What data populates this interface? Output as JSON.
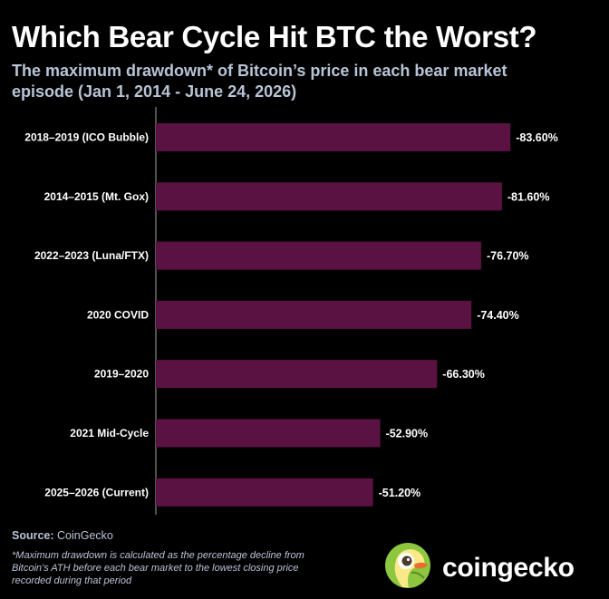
{
  "title": "Which Bear Cycle Hit BTC the Worst?",
  "subtitle": "The maximum drawdown* of Bitcoin’s price in each bear market episode (Jan 1, 2014 - June 24, 2026)",
  "source_label": "Source:",
  "source_value": "CoinGecko",
  "footnote": "*Maximum drawdown is calculated as the percentage decline from Bitcoin’s ATH before each bear market to the lowest closing price recorded during that period",
  "brand": {
    "name": "coingecko",
    "logo_icon": "coingecko-logo-icon"
  },
  "colors": {
    "background": "#000000",
    "bar": "#5a1242",
    "subtitle": "#b8c4d6",
    "axis": "#888888"
  },
  "chart_data": {
    "type": "bar",
    "orientation": "horizontal",
    "categories": [
      "2018–2019 (ICO Bubble)",
      "2014–2015 (Mt. Gox)",
      "2022–2023 (Luna/FTX)",
      "2020 COVID",
      "2019–2020",
      "2021 Mid-Cycle",
      "2025–2026 (Current)"
    ],
    "values": [
      -83.6,
      -81.6,
      -76.7,
      -74.4,
      -66.3,
      -52.9,
      -51.2
    ],
    "value_labels": [
      "-83.60%",
      "-81.60%",
      "-76.70%",
      "-74.40%",
      "-66.30%",
      "-52.90%",
      "-51.20%"
    ],
    "xlim": [
      0,
      -90
    ],
    "grid": false,
    "legend": "none"
  }
}
